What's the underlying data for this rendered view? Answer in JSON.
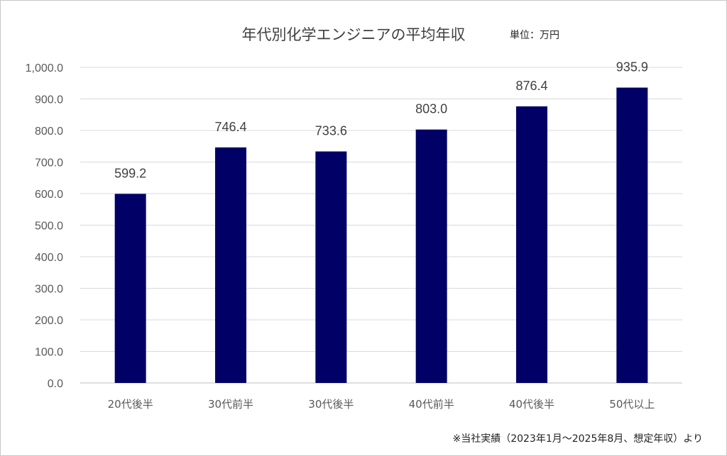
{
  "chart_data": {
    "type": "bar",
    "title": "年代別化学エンジニアの平均年収",
    "unit_label": "単位：万円",
    "categories": [
      "20代後半",
      "30代前半",
      "30代後半",
      "40代前半",
      "40代後半",
      "50代以上"
    ],
    "values": [
      599.2,
      746.4,
      733.6,
      803.0,
      876.4,
      935.9
    ],
    "value_labels": [
      "599.2",
      "746.4",
      "733.6",
      "803.0",
      "876.4",
      "935.9"
    ],
    "ylim": [
      0,
      1000
    ],
    "yticks": [
      "0.0",
      "100.0",
      "200.0",
      "300.0",
      "400.0",
      "500.0",
      "600.0",
      "700.0",
      "800.0",
      "900.0",
      "1,000.0"
    ],
    "grid": true,
    "bar_color": "#000066",
    "footnote": "※当社実績（2023年1月～2025年8月、想定年収）より"
  }
}
